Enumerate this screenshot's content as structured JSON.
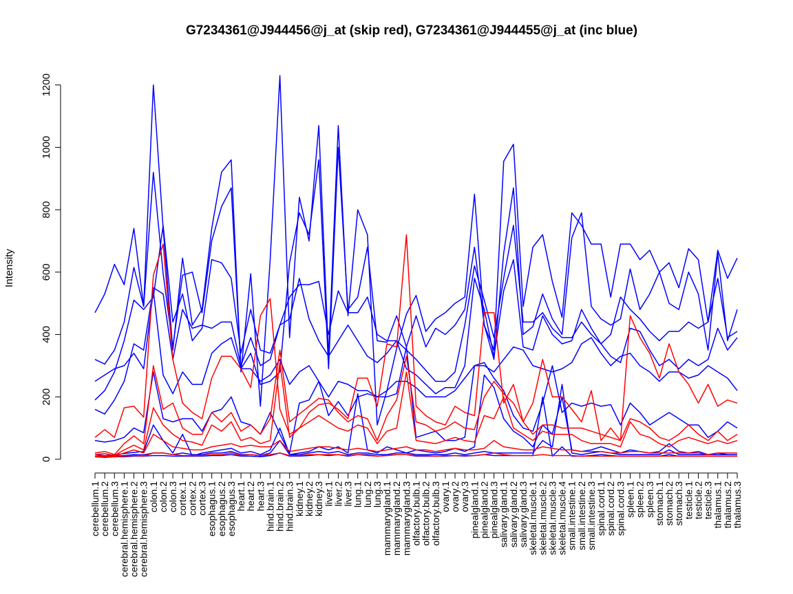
{
  "chart_data": {
    "type": "line",
    "title": "G7234361@J944456@j_at (skip red), G7234361@J944455@j_at (inc blue)",
    "xlabel": "",
    "ylabel": "Intensity",
    "ylim": [
      0,
      1230
    ],
    "yticks": [
      0,
      200,
      400,
      600,
      800,
      1000,
      1200
    ],
    "legend": "none",
    "grid": false,
    "colors": {
      "skip": "#ff0000",
      "inc": "#0000ff"
    },
    "categories": [
      "cerebellum.1",
      "cerebellum.2",
      "cerebellum.3",
      "cerebral.hemisphere.1",
      "cerebral.hemisphere.2",
      "cerebral.hemisphere.3",
      "colon.1",
      "colon.2",
      "colon.3",
      "cortex.1",
      "cortex.2",
      "cortex.3",
      "esophagus.1",
      "esophagus.2",
      "esophagus.3",
      "heart.1",
      "heart.2",
      "heart.3",
      "hind.brain.1",
      "hind.brain.2",
      "hind.brain.3",
      "kidney.1",
      "kidney.2",
      "kidney.3",
      "liver.1",
      "liver.2",
      "liver.3",
      "lung.1",
      "lung.2",
      "lung.3",
      "mammarygland.1",
      "mammarygland.2",
      "mammarygland.3",
      "olfactory.bulb.1",
      "olfactory.bulb.2",
      "olfactory.bulb.3",
      "ovary.1",
      "ovary.2",
      "ovary.3",
      "pinealgland.1",
      "pinealgland.2",
      "pinealgland.3",
      "salivary.gland.1",
      "salivary.gland.2",
      "salivary.gland.3",
      "skeletal.muscle.1",
      "skeletal.muscle.2",
      "skeletal.muscle.3",
      "skeletal.muscle.4",
      "small.intestine.1",
      "small.intestine.2",
      "small.intestine.3",
      "spinal.cord.1",
      "spinal.cord.2",
      "spinal.cord.3",
      "spleen.1",
      "spleen.2",
      "spleen.3",
      "stomach.1",
      "stomach.2",
      "stomach.3",
      "testicle.1",
      "testicle.2",
      "testicle.3",
      "thalamus.1",
      "thalamus.2",
      "thalamus.3"
    ],
    "series": [
      {
        "name": "inc 1",
        "group": "inc",
        "values": [
          470,
          530,
          625,
          560,
          740,
          490,
          1200,
          740,
          350,
          645,
          430,
          480,
          740,
          920,
          960,
          280,
          595,
          170,
          640,
          1230,
          390,
          840,
          700,
          1070,
          330,
          1070,
          460,
          800,
          720,
          110,
          220,
          355,
          465,
          525,
          410,
          450,
          470,
          500,
          520,
          850,
          430,
          350,
          955,
          1010,
          490,
          680,
          720,
          570,
          455,
          790,
          750,
          690,
          690,
          520,
          690,
          690,
          640,
          670,
          600,
          630,
          550,
          675,
          640,
          440,
          670,
          580,
          645
        ]
      },
      {
        "name": "inc 2",
        "group": "inc",
        "values": [
          320,
          305,
          350,
          440,
          615,
          490,
          920,
          595,
          360,
          590,
          600,
          470,
          700,
          810,
          870,
          290,
          340,
          240,
          250,
          280,
          630,
          790,
          720,
          960,
          290,
          1000,
          480,
          520,
          680,
          380,
          375,
          460,
          360,
          460,
          360,
          420,
          400,
          430,
          480,
          680,
          430,
          320,
          660,
          870,
          400,
          425,
          530,
          450,
          400,
          710,
          790,
          490,
          450,
          430,
          450,
          610,
          480,
          530,
          600,
          500,
          480,
          600,
          530,
          350,
          660,
          380,
          480
        ]
      },
      {
        "name": "inc 3",
        "group": "inc",
        "values": [
          190,
          220,
          280,
          380,
          510,
          480,
          520,
          750,
          440,
          530,
          380,
          420,
          640,
          630,
          580,
          340,
          480,
          350,
          340,
          430,
          520,
          560,
          560,
          570,
          400,
          540,
          470,
          470,
          520,
          400,
          380,
          380,
          350,
          320,
          285,
          250,
          250,
          280,
          430,
          620,
          510,
          390,
          580,
          750,
          440,
          440,
          470,
          420,
          390,
          390,
          440,
          400,
          370,
          400,
          520,
          480,
          450,
          410,
          380,
          410,
          410,
          440,
          420,
          440,
          580,
          390,
          410
        ]
      },
      {
        "name": "inc 4",
        "group": "inc",
        "values": [
          160,
          145,
          190,
          250,
          370,
          350,
          550,
          530,
          320,
          480,
          420,
          430,
          420,
          440,
          440,
          300,
          390,
          300,
          320,
          430,
          450,
          580,
          450,
          380,
          330,
          380,
          430,
          380,
          330,
          310,
          340,
          380,
          290,
          270,
          240,
          210,
          230,
          230,
          300,
          580,
          480,
          330,
          540,
          640,
          360,
          350,
          460,
          400,
          370,
          380,
          480,
          420,
          370,
          330,
          310,
          420,
          410,
          350,
          300,
          320,
          290,
          320,
          300,
          320,
          420,
          350,
          390
        ]
      },
      {
        "name": "inc 5",
        "group": "inc",
        "values": [
          250,
          270,
          290,
          300,
          340,
          290,
          540,
          270,
          210,
          280,
          240,
          240,
          340,
          370,
          390,
          290,
          290,
          250,
          270,
          320,
          240,
          280,
          300,
          250,
          200,
          250,
          240,
          220,
          220,
          200,
          220,
          250,
          250,
          230,
          200,
          200,
          200,
          220,
          260,
          300,
          300,
          280,
          320,
          360,
          350,
          300,
          290,
          280,
          290,
          310,
          370,
          390,
          340,
          300,
          330,
          340,
          300,
          280,
          250,
          280,
          280,
          260,
          270,
          300,
          280,
          260,
          220
        ]
      },
      {
        "name": "inc 6",
        "group": "inc",
        "values": [
          60,
          55,
          60,
          70,
          100,
          85,
          280,
          130,
          120,
          130,
          130,
          90,
          150,
          160,
          200,
          120,
          110,
          80,
          150,
          80,
          20,
          180,
          190,
          250,
          140,
          185,
          140,
          200,
          210,
          200,
          200,
          210,
          360,
          70,
          80,
          90,
          60,
          60,
          70,
          300,
          310,
          260,
          220,
          140,
          100,
          90,
          180,
          300,
          150,
          180,
          170,
          180,
          170,
          175,
          110,
          180,
          150,
          110,
          130,
          150,
          130,
          110,
          110,
          70,
          90,
          120,
          100
        ]
      },
      {
        "name": "inc 7",
        "group": "inc",
        "values": [
          15,
          12,
          14,
          18,
          22,
          25,
          110,
          60,
          20,
          80,
          10,
          20,
          25,
          30,
          35,
          20,
          25,
          15,
          30,
          100,
          15,
          20,
          25,
          40,
          30,
          40,
          20,
          210,
          30,
          20,
          40,
          30,
          20,
          30,
          25,
          20,
          25,
          35,
          25,
          40,
          270,
          230,
          130,
          90,
          70,
          40,
          110,
          80,
          200,
          30,
          25,
          30,
          40,
          30,
          20,
          30,
          25,
          20,
          25,
          50,
          25,
          20,
          25,
          15,
          20,
          15,
          15
        ]
      },
      {
        "name": "inc 8",
        "group": "inc",
        "values": [
          10,
          8,
          10,
          12,
          15,
          14,
          20,
          20,
          15,
          20,
          15,
          15,
          20,
          20,
          25,
          15,
          15,
          12,
          20,
          60,
          15,
          15,
          20,
          25,
          20,
          25,
          15,
          20,
          20,
          15,
          15,
          20,
          20,
          15,
          15,
          15,
          15,
          20,
          15,
          20,
          25,
          20,
          20,
          20,
          20,
          20,
          60,
          40,
          240,
          20,
          15,
          20,
          25,
          20,
          15,
          15,
          15,
          15,
          15,
          30,
          15,
          15,
          15,
          15,
          15,
          15,
          15
        ]
      },
      {
        "name": "inc 9",
        "group": "inc",
        "values": [
          8,
          6,
          8,
          8,
          10,
          10,
          12,
          12,
          10,
          10,
          10,
          10,
          12,
          12,
          15,
          10,
          10,
          8,
          12,
          20,
          10,
          10,
          12,
          15,
          12,
          15,
          10,
          15,
          15,
          10,
          12,
          15,
          15,
          10,
          10,
          10,
          10,
          12,
          10,
          12,
          15,
          12,
          12,
          12,
          12,
          12,
          200,
          10,
          40,
          10,
          10,
          12,
          15,
          12,
          10,
          10,
          10,
          10,
          10,
          15,
          10,
          10,
          10,
          10,
          10,
          10,
          10
        ]
      },
      {
        "name": "skip 1",
        "group": "skip",
        "values": [
          70,
          95,
          70,
          165,
          170,
          135,
          590,
          690,
          320,
          180,
          150,
          130,
          260,
          330,
          330,
          290,
          230,
          460,
          515,
          160,
          80,
          100,
          150,
          175,
          180,
          160,
          130,
          260,
          260,
          170,
          370,
          360,
          720,
          170,
          140,
          120,
          110,
          170,
          150,
          140,
          470,
          470,
          180,
          240,
          120,
          180,
          320,
          200,
          200,
          160,
          120,
          220,
          60,
          100,
          60,
          460,
          390,
          340,
          260,
          370,
          280,
          240,
          180,
          240,
          170,
          190,
          180
        ]
      },
      {
        "name": "skip 2",
        "group": "skip",
        "values": [
          20,
          25,
          15,
          50,
          75,
          50,
          300,
          160,
          180,
          100,
          80,
          80,
          150,
          120,
          150,
          90,
          110,
          80,
          130,
          350,
          120,
          145,
          170,
          195,
          190,
          150,
          120,
          140,
          130,
          60,
          140,
          190,
          330,
          120,
          110,
          90,
          100,
          120,
          100,
          95,
          200,
          250,
          210,
          180,
          120,
          80,
          110,
          110,
          100,
          100,
          100,
          90,
          80,
          70,
          60,
          130,
          120,
          100,
          70,
          60,
          80,
          110,
          80,
          60,
          90,
          60,
          80
        ]
      },
      {
        "name": "skip 3",
        "group": "skip",
        "values": [
          15,
          18,
          12,
          30,
          45,
          30,
          165,
          110,
          80,
          60,
          55,
          45,
          110,
          90,
          120,
          60,
          70,
          50,
          60,
          310,
          70,
          100,
          120,
          140,
          120,
          100,
          90,
          110,
          100,
          50,
          90,
          100,
          280,
          60,
          55,
          50,
          60,
          70,
          60,
          55,
          140,
          130,
          200,
          100,
          80,
          60,
          90,
          80,
          80,
          80,
          60,
          50,
          50,
          50,
          40,
          120,
          80,
          70,
          50,
          40,
          60,
          70,
          60,
          50,
          60,
          50,
          60
        ]
      },
      {
        "name": "skip 4",
        "group": "skip",
        "values": [
          10,
          12,
          10,
          20,
          30,
          20,
          80,
          60,
          40,
          35,
          30,
          30,
          40,
          45,
          50,
          40,
          45,
          40,
          40,
          60,
          25,
          30,
          35,
          40,
          40,
          35,
          30,
          35,
          30,
          25,
          30,
          35,
          40,
          30,
          30,
          25,
          30,
          35,
          30,
          30,
          35,
          60,
          40,
          35,
          30,
          30,
          40,
          35,
          30,
          30,
          25,
          25,
          25,
          20,
          20,
          25,
          25,
          20,
          20,
          20,
          20,
          20,
          20,
          15,
          20,
          20,
          20
        ]
      },
      {
        "name": "skip 5",
        "group": "skip",
        "values": [
          8,
          8,
          8,
          10,
          12,
          10,
          20,
          20,
          15,
          12,
          12,
          12,
          15,
          15,
          20,
          12,
          15,
          12,
          15,
          20,
          12,
          12,
          15,
          15,
          15,
          15,
          12,
          15,
          12,
          10,
          12,
          15,
          15,
          12,
          12,
          10,
          12,
          12,
          12,
          12,
          15,
          20,
          15,
          12,
          12,
          12,
          15,
          12,
          12,
          12,
          10,
          10,
          10,
          10,
          10,
          10,
          10,
          10,
          10,
          10,
          10,
          10,
          10,
          10,
          10,
          10,
          10
        ]
      }
    ]
  }
}
